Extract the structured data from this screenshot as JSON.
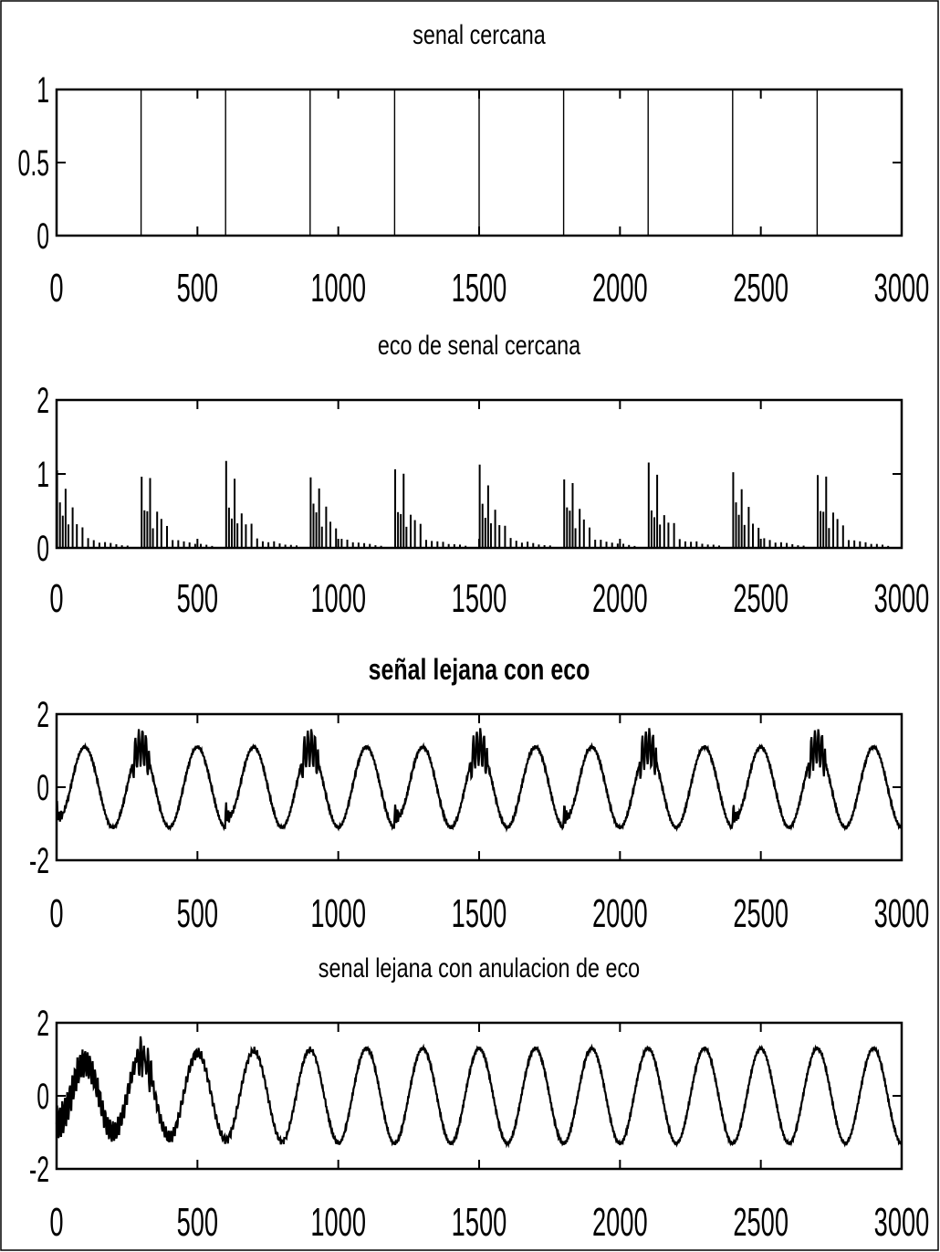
{
  "chart_data": [
    {
      "type": "line",
      "title": "senal cercana",
      "title_bold": false,
      "xlim": [
        0,
        3000
      ],
      "ylim": [
        0,
        1
      ],
      "xticks": [
        "0",
        "500",
        "1000",
        "1500",
        "2000",
        "2500",
        "3000"
      ],
      "yticks": [
        "0",
        "0.5",
        "1"
      ],
      "grid": false,
      "series": [
        {
          "kind": "impulses",
          "x": [
            300,
            600,
            900,
            1200,
            1500,
            1800,
            2100,
            2400,
            2700
          ],
          "y": [
            1,
            1,
            1,
            1,
            1,
            1,
            1,
            1,
            1
          ]
        }
      ]
    },
    {
      "type": "line",
      "title": "eco de senal cercana",
      "title_bold": false,
      "xlim": [
        0,
        3000
      ],
      "ylim": [
        0,
        2
      ],
      "xticks": [
        "0",
        "500",
        "1000",
        "1500",
        "2000",
        "2500",
        "3000"
      ],
      "yticks": [
        "0",
        "1",
        "2"
      ],
      "grid": false,
      "series": [
        {
          "kind": "echo-impulses",
          "period": 300,
          "start": 0,
          "offsets": [
            0,
            10,
            20,
            30,
            40,
            55,
            70,
            90,
            110,
            130,
            150,
            170,
            190,
            210,
            230,
            250
          ],
          "amplitudes": [
            1.05,
            0.55,
            0.45,
            0.9,
            0.3,
            0.5,
            0.35,
            0.3,
            0.12,
            0.1,
            0.08,
            0.08,
            0.06,
            0.05,
            0.04,
            0.03
          ]
        }
      ]
    },
    {
      "type": "line",
      "title": "señal lejana con eco",
      "title_bold": true,
      "xlim": [
        0,
        3000
      ],
      "ylim": [
        -2,
        2
      ],
      "xticks": [
        "0",
        "500",
        "1000",
        "1500",
        "2000",
        "2500",
        "3000"
      ],
      "yticks": [
        "-2",
        "0",
        "2"
      ],
      "grid": false,
      "series": [
        {
          "kind": "sine-echo",
          "amplitude": 1.1,
          "period": 200,
          "phase": 0,
          "echo_period": 600,
          "echo_peak": 0.8
        }
      ]
    },
    {
      "type": "line",
      "title": "senal lejana con anulacion de eco",
      "title_bold": false,
      "xlim": [
        0,
        3000
      ],
      "ylim": [
        -2,
        2
      ],
      "xticks": [
        "0",
        "500",
        "1000",
        "1500",
        "2000",
        "2500",
        "3000"
      ],
      "yticks": [
        "-2",
        "0",
        "2"
      ],
      "grid": false,
      "series": [
        {
          "kind": "sine-cancel",
          "amplitude": 1.3,
          "period": 200,
          "phase": 0,
          "residual_until": 1000
        }
      ]
    }
  ]
}
